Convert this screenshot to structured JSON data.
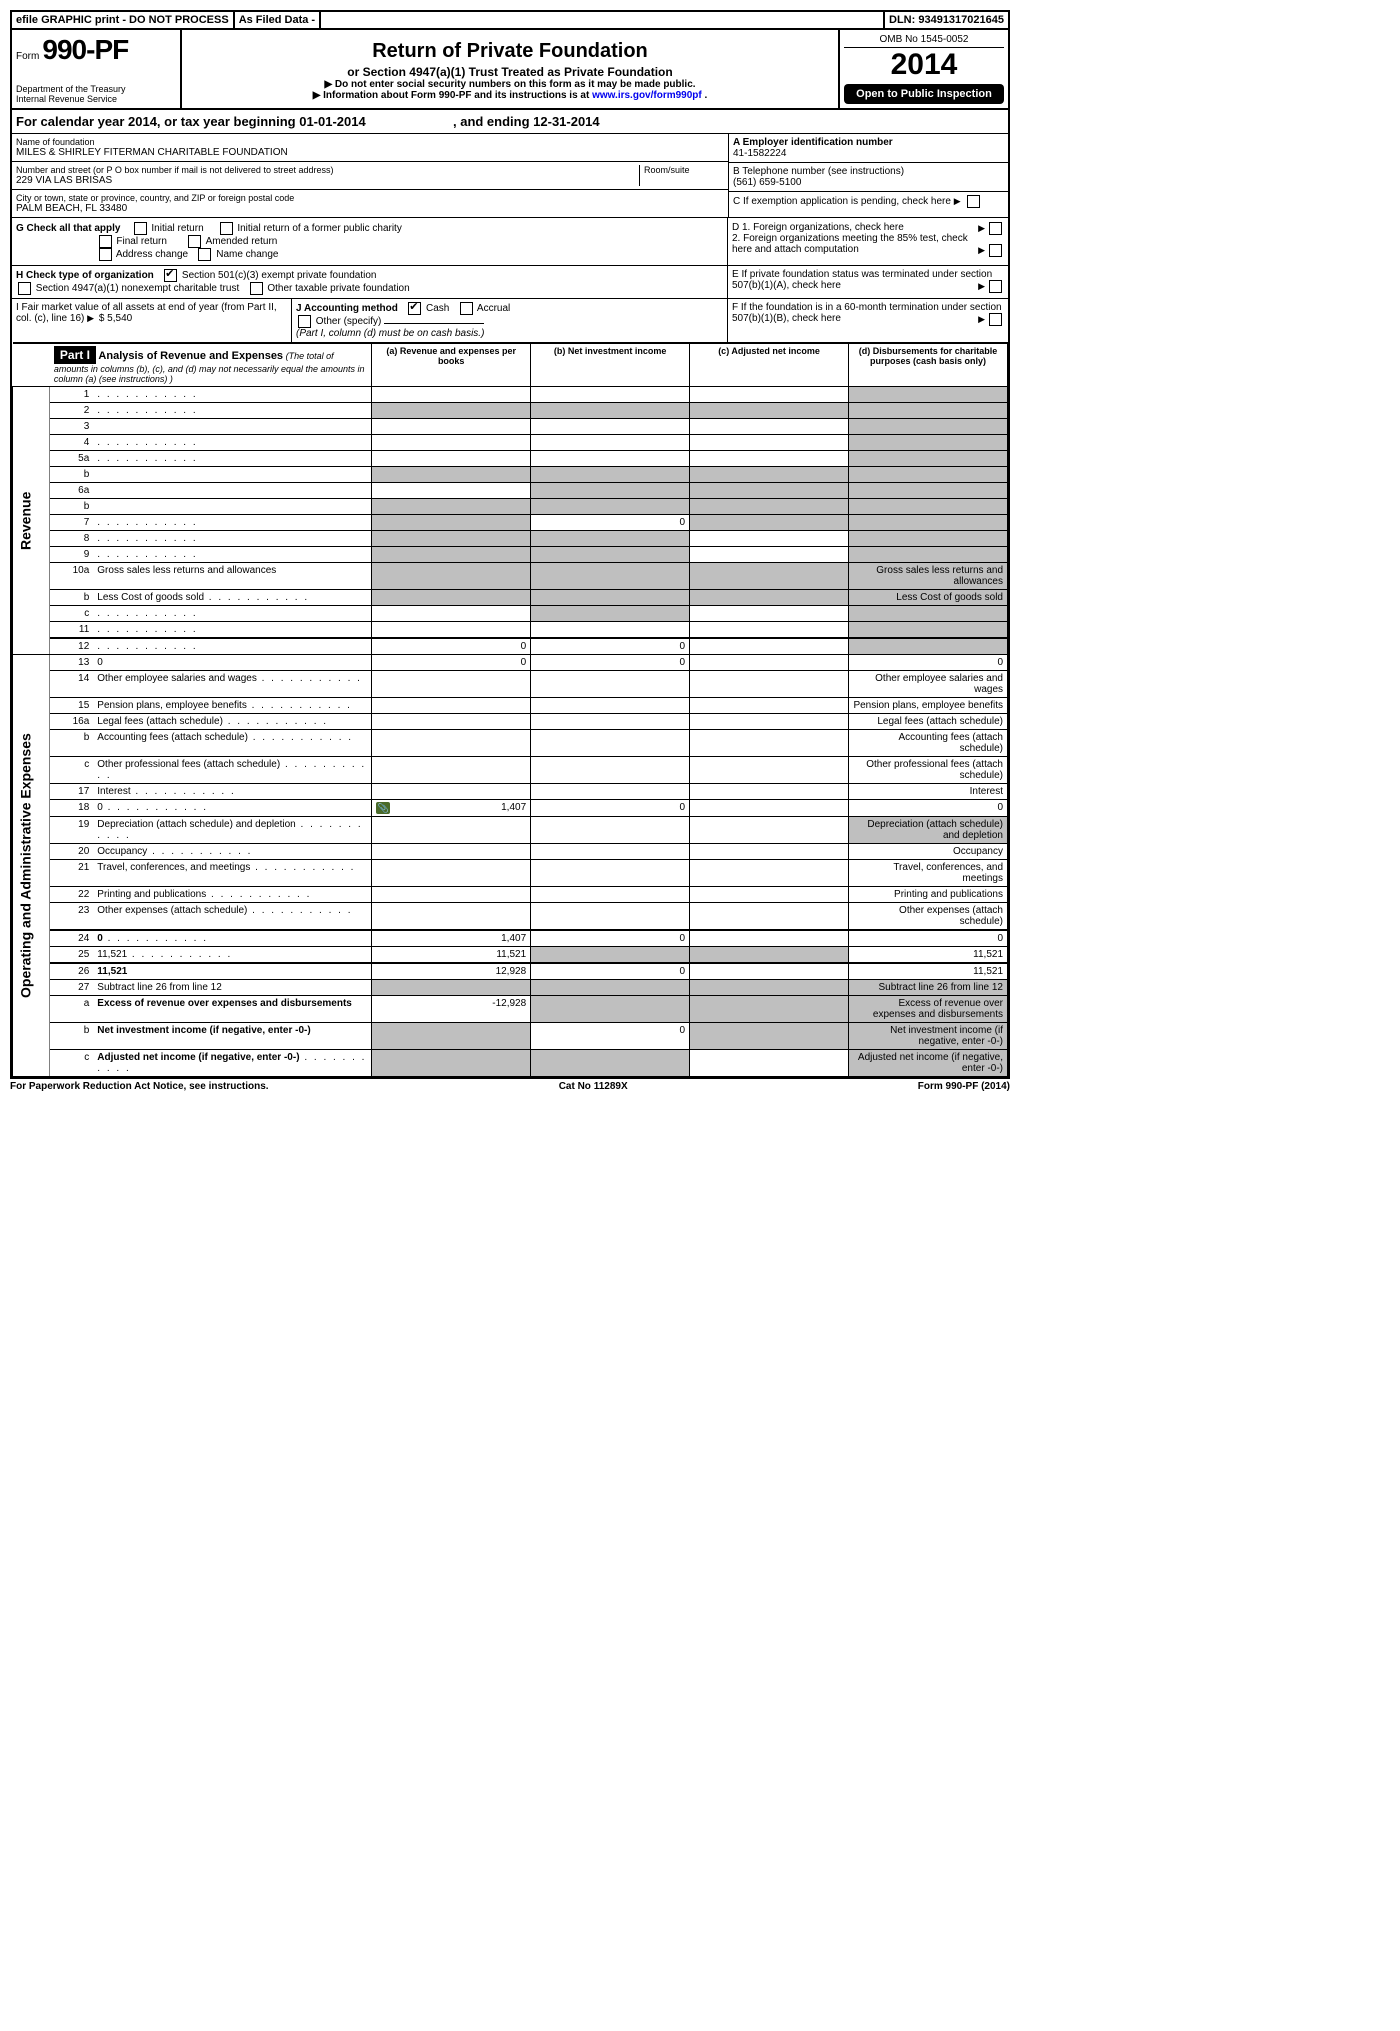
{
  "topbar": {
    "efile": "efile GRAPHIC print - DO NOT PROCESS",
    "asfiled": "As Filed Data -",
    "dln_label": "DLN:",
    "dln": "93491317021645"
  },
  "header": {
    "form_prefix": "Form",
    "form_number": "990-PF",
    "dept1": "Department of the Treasury",
    "dept2": "Internal Revenue Service",
    "title": "Return of Private Foundation",
    "subtitle": "or Section 4947(a)(1) Trust Treated as Private Foundation",
    "note1": "▶ Do not enter social security numbers on this form as it may be made public.",
    "note2_pre": "▶ Information about Form 990-PF and its instructions is at ",
    "note2_link": "www.irs.gov/form990pf",
    "note2_post": ".",
    "omb": "OMB No 1545-0052",
    "year": "2014",
    "open": "Open to Public Inspection"
  },
  "calyear": {
    "text_a": "For calendar year 2014, or tax year beginning 01-01-2014",
    "text_b": ", and ending 12-31-2014"
  },
  "entity": {
    "name_label": "Name of foundation",
    "name": "MILES & SHIRLEY FITERMAN CHARITABLE FOUNDATION",
    "addr_label": "Number and street (or P O  box number if mail is not delivered to street address)",
    "room_label": "Room/suite",
    "addr": "229 VIA LAS BRISAS",
    "city_label": "City or town, state or province, country, and ZIP or foreign postal code",
    "city": "PALM BEACH, FL  33480",
    "ein_label": "A Employer identification number",
    "ein": "41-1582224",
    "tel_label": "B Telephone number (see instructions)",
    "tel": "(561) 659-5100",
    "c_label": "C  If exemption application is pending, check here"
  },
  "checks": {
    "g_label": "G Check all that apply",
    "g_opts": [
      "Initial return",
      "Initial return of a former public charity",
      "Final return",
      "Amended return",
      "Address change",
      "Name change"
    ],
    "h_label": "H Check type of organization",
    "h_opts": [
      "Section 501(c)(3) exempt private foundation",
      "Section 4947(a)(1) nonexempt charitable trust",
      "Other taxable private foundation"
    ],
    "d1": "D 1. Foreign organizations, check here",
    "d2": "2. Foreign organizations meeting the 85% test, check here and attach computation",
    "e": "E  If private foundation status was terminated under section 507(b)(1)(A), check here",
    "i_label": "I Fair market value of all assets at end of year (from Part II, col. (c), line 16)",
    "i_amt": "$  5,540",
    "j_label": "J Accounting method",
    "j_cash": "Cash",
    "j_accrual": "Accrual",
    "j_other": "Other (specify)",
    "j_note": "(Part I, column (d) must be on cash basis.)",
    "f": "F  If the foundation is in a 60-month termination under section 507(b)(1)(B), check here"
  },
  "part1": {
    "label": "Part I",
    "title": "Analysis of Revenue and Expenses",
    "title_note": "(The total of amounts in columns (b), (c), and (d) may not necessarily equal the amounts in column (a) (see instructions) )",
    "col_a": "(a) Revenue and expenses per books",
    "col_b": "(b) Net investment income",
    "col_c": "(c) Adjusted net income",
    "col_d": "(d) Disbursements for charitable purposes (cash basis only)",
    "side_rev": "Revenue",
    "side_exp": "Operating and Administrative Expenses"
  },
  "rows": [
    {
      "n": "1",
      "d": "",
      "dots": true,
      "a": "",
      "b": "",
      "c": "",
      "dshade": true
    },
    {
      "n": "2",
      "d": "",
      "dots": true,
      "a": "",
      "b": "",
      "c": "",
      "allshade": true
    },
    {
      "n": "3",
      "d": "",
      "a": "",
      "b": "",
      "c": "",
      "dshade": true
    },
    {
      "n": "4",
      "d": "",
      "dots": true,
      "a": "",
      "b": "",
      "c": "",
      "dshade": true
    },
    {
      "n": "5a",
      "d": "",
      "dots": true,
      "a": "",
      "b": "",
      "c": "",
      "dshade": true
    },
    {
      "n": "b",
      "d": "",
      "a": "",
      "b": "",
      "c": "",
      "allshade": true
    },
    {
      "n": "6a",
      "d": "",
      "a": "",
      "b": "",
      "c": "",
      "bcdshade": true
    },
    {
      "n": "b",
      "d": "",
      "a": "",
      "b": "",
      "c": "",
      "allshade": true
    },
    {
      "n": "7",
      "d": "",
      "dots": true,
      "a": "",
      "b": "0",
      "c": "",
      "ashade": true,
      "cdshade": true
    },
    {
      "n": "8",
      "d": "",
      "dots": true,
      "a": "",
      "b": "",
      "c": "",
      "abshade": true,
      "dshade": true
    },
    {
      "n": "9",
      "d": "",
      "dots": true,
      "a": "",
      "b": "",
      "c": "",
      "abshade": true,
      "dshade": true
    },
    {
      "n": "10a",
      "d": "Gross sales less returns and allowances",
      "half": true,
      "allshade": true
    },
    {
      "n": "b",
      "d": "Less  Cost of goods sold",
      "dots": true,
      "half": true,
      "allshade": true
    },
    {
      "n": "c",
      "d": "",
      "dots": true,
      "a": "",
      "b": "",
      "c": "",
      "bshade": true,
      "dshade": true
    },
    {
      "n": "11",
      "d": "",
      "dots": true,
      "a": "",
      "b": "",
      "c": "",
      "dshade": true
    },
    {
      "n": "12",
      "d": "",
      "dots": true,
      "b_": true,
      "a": "0",
      "b": "0",
      "c": "",
      "dshade": true,
      "thick": true
    }
  ],
  "exp_rows": [
    {
      "n": "13",
      "d": "0",
      "a": "0",
      "b": "0",
      "c": ""
    },
    {
      "n": "14",
      "d": "Other employee salaries and wages",
      "dots": true
    },
    {
      "n": "15",
      "d": "Pension plans, employee benefits",
      "dots": true
    },
    {
      "n": "16a",
      "d": "Legal fees (attach schedule)",
      "dots": true
    },
    {
      "n": "b",
      "d": "Accounting fees (attach schedule)",
      "dots": true
    },
    {
      "n": "c",
      "d": "Other professional fees (attach schedule)",
      "dots": true
    },
    {
      "n": "17",
      "d": "Interest",
      "dots": true
    },
    {
      "n": "18",
      "d": "0",
      "dots": true,
      "icon": true,
      "a": "1,407",
      "b": "0",
      "c": ""
    },
    {
      "n": "19",
      "d": "Depreciation (attach schedule) and depletion",
      "dots": true,
      "dshade": true
    },
    {
      "n": "20",
      "d": "Occupancy",
      "dots": true
    },
    {
      "n": "21",
      "d": "Travel, conferences, and meetings",
      "dots": true
    },
    {
      "n": "22",
      "d": "Printing and publications",
      "dots": true
    },
    {
      "n": "23",
      "d": "Other expenses (attach schedule)",
      "dots": true
    },
    {
      "n": "24",
      "d": "0",
      "dots": true,
      "b_": true,
      "a": "1,407",
      "b": "0",
      "c": "",
      "thick": true
    },
    {
      "n": "25",
      "d": "11,521",
      "dots": true,
      "a": "11,521",
      "bshade": true,
      "cshade": true
    },
    {
      "n": "26",
      "d": "11,521",
      "b_": true,
      "a": "12,928",
      "b": "0",
      "c": "",
      "thick": true
    },
    {
      "n": "27",
      "d": "Subtract line 26 from line 12",
      "allshade": true
    },
    {
      "n": "a",
      "d": "Excess of revenue over expenses and disbursements",
      "b_": true,
      "a": "-12,928",
      "bcdshade": true
    },
    {
      "n": "b",
      "d": "Net investment income (if negative, enter -0-)",
      "b_": true,
      "ashade": true,
      "b": "0",
      "cdshade": true
    },
    {
      "n": "c",
      "d": "Adjusted net income (if negative, enter -0-)",
      "dots": true,
      "b_": true,
      "abshade": true,
      "dshade": true
    }
  ],
  "footer": {
    "left": "For Paperwork Reduction Act Notice, see instructions.",
    "mid": "Cat No  11289X",
    "right": "Form 990-PF (2014)"
  }
}
